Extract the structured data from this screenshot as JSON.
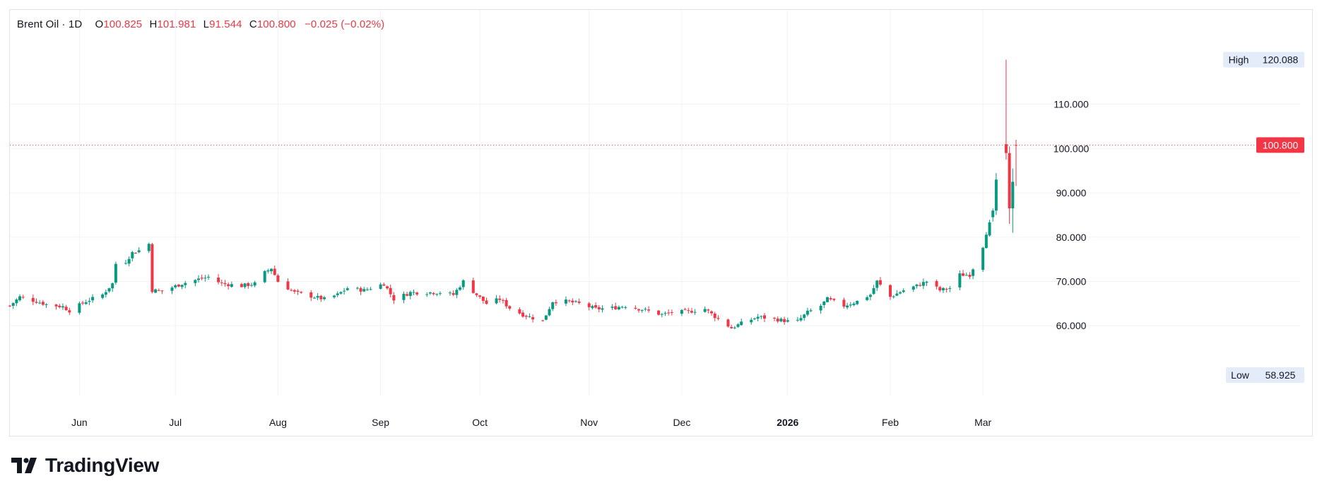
{
  "legend": {
    "symbol": "Brent Oil · 1D",
    "open_label": "O",
    "open": "100.825",
    "high_label": "H",
    "high": "101.981",
    "low_label": "L",
    "low": "91.544",
    "close_label": "C",
    "close": "100.800",
    "change": "−0.025 (−0.02%)"
  },
  "brand": {
    "name": "TradingView"
  },
  "colors": {
    "up": "#089981",
    "down": "#f23645",
    "grid": "#f0f3fa",
    "axis_text": "#131722",
    "badge_bg": "#e3ecf8"
  },
  "chart_data": {
    "type": "candlestick",
    "title": "Brent Oil · 1D",
    "ylim": [
      53,
      124
    ],
    "yticks": [
      "60.000",
      "70.000",
      "80.000",
      "90.000",
      "100.000",
      "110.000"
    ],
    "x_labels": [
      {
        "label": "Jun",
        "date": "2025-06-02",
        "bold": false
      },
      {
        "label": "Jul",
        "date": "2025-07-01",
        "bold": false
      },
      {
        "label": "Aug",
        "date": "2025-08-01",
        "bold": false
      },
      {
        "label": "Sep",
        "date": "2025-09-01",
        "bold": false
      },
      {
        "label": "Oct",
        "date": "2025-10-01",
        "bold": false
      },
      {
        "label": "Nov",
        "date": "2025-11-03",
        "bold": false
      },
      {
        "label": "Dec",
        "date": "2025-12-01",
        "bold": false
      },
      {
        "label": "2026",
        "date": "2026-01-02",
        "bold": true
      },
      {
        "label": "Feb",
        "date": "2026-02-02",
        "bold": false
      },
      {
        "label": "Mar",
        "date": "2026-03-02",
        "bold": false
      }
    ],
    "markers": {
      "high": {
        "label": "High",
        "value": "120.088"
      },
      "low": {
        "label": "Low",
        "value": "58.925"
      },
      "last": {
        "value": "100.800",
        "price": 100.8
      }
    },
    "start_date": "2025-05-12",
    "waypoints": [
      [
        "2025-05-12",
        64.5
      ],
      [
        "2025-05-15",
        66.5
      ],
      [
        "2025-05-20",
        65.5
      ],
      [
        "2025-05-23",
        64.8
      ],
      [
        "2025-05-28",
        64.3
      ],
      [
        "2025-05-30",
        63.4
      ],
      [
        "2025-06-04",
        65.5
      ],
      [
        "2025-06-09",
        67.0
      ],
      [
        "2025-06-12",
        69.5
      ],
      [
        "2025-06-13",
        74.0
      ],
      [
        "2025-06-16",
        74.5
      ],
      [
        "2025-06-18",
        76.5
      ],
      [
        "2025-06-20",
        77.0
      ],
      [
        "2025-06-23",
        78.5
      ],
      [
        "2025-06-24",
        68.0
      ],
      [
        "2025-06-27",
        67.8
      ],
      [
        "2025-07-03",
        69.5
      ],
      [
        "2025-07-08",
        70.5
      ],
      [
        "2025-07-11",
        71.0
      ],
      [
        "2025-07-15",
        69.5
      ],
      [
        "2025-07-21",
        69.0
      ],
      [
        "2025-07-25",
        69.5
      ],
      [
        "2025-07-28",
        72.0
      ],
      [
        "2025-07-30",
        73.0
      ],
      [
        "2025-08-01",
        70.0
      ],
      [
        "2025-08-06",
        67.5
      ],
      [
        "2025-08-12",
        66.5
      ],
      [
        "2025-08-15",
        66.0
      ],
      [
        "2025-08-19",
        67.0
      ],
      [
        "2025-08-22",
        68.5
      ],
      [
        "2025-08-27",
        68.0
      ],
      [
        "2025-09-02",
        69.5
      ],
      [
        "2025-09-05",
        66.0
      ],
      [
        "2025-09-10",
        67.5
      ],
      [
        "2025-09-15",
        67.5
      ],
      [
        "2025-09-19",
        67.5
      ],
      [
        "2025-09-23",
        67.0
      ],
      [
        "2025-09-26",
        70.0
      ],
      [
        "2025-09-30",
        67.0
      ],
      [
        "2025-10-03",
        65.0
      ],
      [
        "2025-10-07",
        66.0
      ],
      [
        "2025-10-10",
        64.0
      ],
      [
        "2025-10-14",
        62.5
      ],
      [
        "2025-10-20",
        61.0
      ],
      [
        "2025-10-23",
        65.5
      ],
      [
        "2025-10-27",
        65.5
      ],
      [
        "2025-10-31",
        65.0
      ],
      [
        "2025-11-05",
        63.8
      ],
      [
        "2025-11-10",
        64.0
      ],
      [
        "2025-11-14",
        64.5
      ],
      [
        "2025-11-20",
        63.5
      ],
      [
        "2025-11-25",
        62.5
      ],
      [
        "2025-11-28",
        63.0
      ],
      [
        "2025-12-03",
        63.2
      ],
      [
        "2025-12-08",
        63.8
      ],
      [
        "2025-12-12",
        61.5
      ],
      [
        "2025-12-16",
        59.5
      ],
      [
        "2025-12-19",
        60.5
      ],
      [
        "2025-12-24",
        62.0
      ],
      [
        "2025-12-29",
        61.5
      ],
      [
        "2026-01-02",
        61.0
      ],
      [
        "2026-01-05",
        61.0
      ],
      [
        "2026-01-08",
        63.0
      ],
      [
        "2026-01-12",
        64.5
      ],
      [
        "2026-01-14",
        66.0
      ],
      [
        "2026-01-19",
        64.5
      ],
      [
        "2026-01-23",
        65.5
      ],
      [
        "2026-01-27",
        67.0
      ],
      [
        "2026-01-29",
        70.0
      ],
      [
        "2026-02-02",
        66.5
      ],
      [
        "2026-02-06",
        68.0
      ],
      [
        "2026-02-10",
        69.0
      ],
      [
        "2026-02-13",
        70.0
      ],
      [
        "2026-02-17",
        68.0
      ],
      [
        "2026-02-20",
        68.5
      ],
      [
        "2026-02-23",
        71.5
      ],
      [
        "2026-02-26",
        71.5
      ],
      [
        "2026-02-27",
        73.0
      ],
      [
        "2026-03-02",
        78.0
      ],
      [
        "2026-03-03",
        81.0
      ],
      [
        "2026-03-04",
        83.0
      ],
      [
        "2026-03-05",
        87.0
      ],
      [
        "2026-03-06",
        93.0
      ],
      [
        "2026-03-09",
        99.0
      ],
      [
        "2026-03-10",
        88.0
      ],
      [
        "2026-03-11",
        92.0
      ],
      [
        "2026-03-12",
        100.8
      ]
    ],
    "last_candles": [
      {
        "date": "2026-03-05",
        "o": 84.5,
        "h": 86.5,
        "l": 83.5,
        "c": 86.0
      },
      {
        "date": "2026-03-06",
        "o": 86.0,
        "h": 94.5,
        "l": 85.0,
        "c": 93.0
      },
      {
        "date": "2026-03-09",
        "o": 101.0,
        "h": 120.088,
        "l": 97.5,
        "c": 99.0
      },
      {
        "date": "2026-03-10",
        "o": 99.0,
        "h": 100.5,
        "l": 83.0,
        "c": 86.5
      },
      {
        "date": "2026-03-11",
        "o": 86.5,
        "h": 95.5,
        "l": 81.0,
        "c": 92.5
      },
      {
        "date": "2026-03-12",
        "o": 100.825,
        "h": 101.981,
        "l": 91.544,
        "c": 100.8
      }
    ]
  }
}
